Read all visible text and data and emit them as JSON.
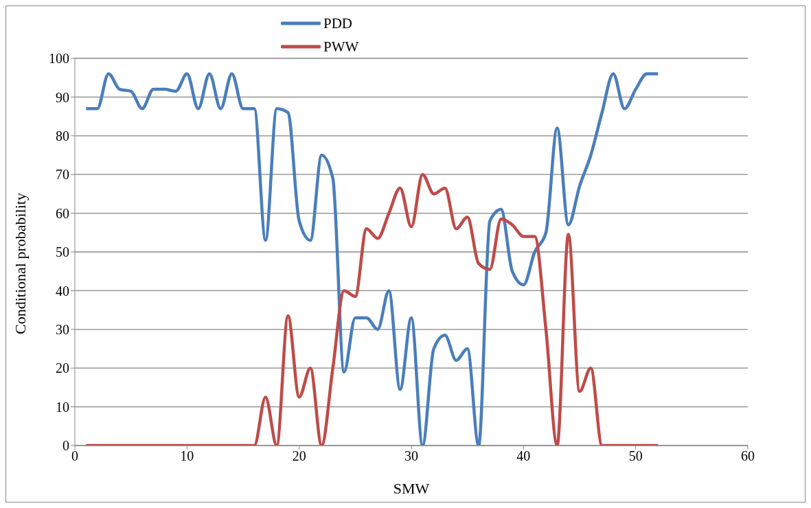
{
  "chart_data": {
    "type": "line",
    "xlabel": "SMW",
    "ylabel": "Conditional probability",
    "x": [
      1,
      2,
      3,
      4,
      5,
      6,
      7,
      8,
      9,
      10,
      11,
      12,
      13,
      14,
      15,
      16,
      17,
      18,
      19,
      20,
      21,
      22,
      23,
      24,
      25,
      26,
      27,
      28,
      29,
      30,
      31,
      32,
      33,
      34,
      35,
      36,
      37,
      38,
      39,
      40,
      41,
      42,
      43,
      44,
      45,
      46,
      47,
      48,
      49,
      50,
      51,
      52
    ],
    "series": [
      {
        "name": "PDD",
        "color": "#4a7ebb",
        "values": [
          87,
          87,
          96,
          92,
          91.5,
          87,
          92,
          92,
          91.5,
          96,
          87,
          96,
          87,
          96,
          87,
          87,
          53,
          87,
          86,
          58,
          53,
          75,
          69,
          19,
          33,
          33,
          30,
          40,
          14.5,
          33,
          0,
          25,
          28.5,
          22,
          25,
          0,
          58,
          61,
          45,
          41.5,
          50,
          55,
          82,
          57,
          67,
          75,
          86,
          96,
          87,
          92,
          96,
          96
        ]
      },
      {
        "name": "PWW",
        "color": "#be4b48",
        "values": [
          0,
          0,
          0,
          0,
          0,
          0,
          0,
          0,
          0,
          0,
          0,
          0,
          0,
          0,
          0,
          0,
          12.5,
          0,
          33.5,
          12.5,
          20,
          0,
          20,
          40,
          38.5,
          56,
          53.5,
          60,
          66.5,
          56.5,
          70,
          65,
          66.5,
          56,
          59,
          47,
          45.5,
          58.5,
          57,
          54,
          54,
          30,
          0,
          54.5,
          14,
          20,
          0,
          0,
          0,
          0,
          0,
          0
        ]
      }
    ],
    "xlim": [
      0,
      60
    ],
    "xticks": [
      0,
      10,
      20,
      30,
      40,
      50,
      60
    ],
    "ylim": [
      0,
      100
    ],
    "yticks": [
      0,
      10,
      20,
      30,
      40,
      50,
      60,
      70,
      80,
      90,
      100
    ],
    "grid": "y",
    "legend": "top",
    "marker": "none",
    "line_style": "solid"
  }
}
